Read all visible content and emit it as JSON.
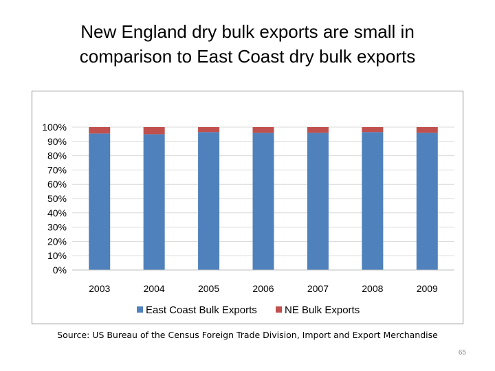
{
  "slide": {
    "title_line1": "New England dry bulk exports are small in",
    "title_line2": "comparison to East Coast dry bulk exports",
    "source": "Source: US Bureau of the Census Foreign Trade Division, Import and Export Merchandise",
    "page_number": "65"
  },
  "chart_data": {
    "type": "bar",
    "stacked": true,
    "categories": [
      "2003",
      "2004",
      "2005",
      "2006",
      "2007",
      "2008",
      "2009"
    ],
    "series": [
      {
        "name": "East Coast Bulk Exports",
        "color": "#4f81bd",
        "values": [
          95.5,
          95,
          96.5,
          96,
          96,
          96.5,
          96
        ]
      },
      {
        "name": "NE Bulk Exports",
        "color": "#c0504d",
        "values": [
          4.5,
          5,
          3.5,
          4,
          4,
          3.5,
          4
        ]
      }
    ],
    "ylim": [
      0,
      100
    ],
    "yticks": [
      "0%",
      "10%",
      "20%",
      "30%",
      "40%",
      "50%",
      "60%",
      "70%",
      "80%",
      "90%",
      "100%"
    ],
    "grid": true,
    "legend_position": "bottom"
  }
}
